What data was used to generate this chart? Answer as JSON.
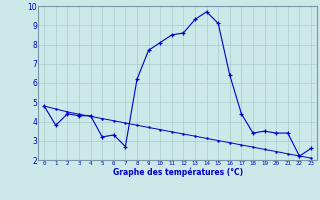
{
  "x": [
    0,
    1,
    2,
    3,
    4,
    5,
    6,
    7,
    8,
    9,
    10,
    11,
    12,
    13,
    14,
    15,
    16,
    17,
    18,
    19,
    20,
    21,
    22,
    23
  ],
  "y_main": [
    4.8,
    3.8,
    4.4,
    4.3,
    4.3,
    3.2,
    3.3,
    2.7,
    6.2,
    7.7,
    8.1,
    8.5,
    8.6,
    9.3,
    9.7,
    9.1,
    6.4,
    4.4,
    3.4,
    3.5,
    3.4,
    3.4,
    2.2,
    2.6
  ],
  "y_trend": [
    4.8,
    4.65,
    4.5,
    4.38,
    4.27,
    4.15,
    4.04,
    3.92,
    3.81,
    3.69,
    3.58,
    3.46,
    3.35,
    3.24,
    3.12,
    3.01,
    2.9,
    2.78,
    2.67,
    2.55,
    2.44,
    2.32,
    2.21,
    2.1
  ],
  "xlim": [
    -0.5,
    23.5
  ],
  "ylim": [
    2,
    10
  ],
  "yticks": [
    2,
    3,
    4,
    5,
    6,
    7,
    8,
    9,
    10
  ],
  "xtick_labels": [
    "0",
    "1",
    "2",
    "3",
    "4",
    "5",
    "6",
    "7",
    "8",
    "9",
    "10",
    "11",
    "12",
    "13",
    "14",
    "15",
    "16",
    "17",
    "18",
    "19",
    "20",
    "21",
    "22",
    "23"
  ],
  "xlabel": "Graphe des températures (°C)",
  "line_color": "#0000cc",
  "bg_color": "#cce8e8",
  "grid_color": "#aacccc",
  "spine_color": "#7799aa"
}
